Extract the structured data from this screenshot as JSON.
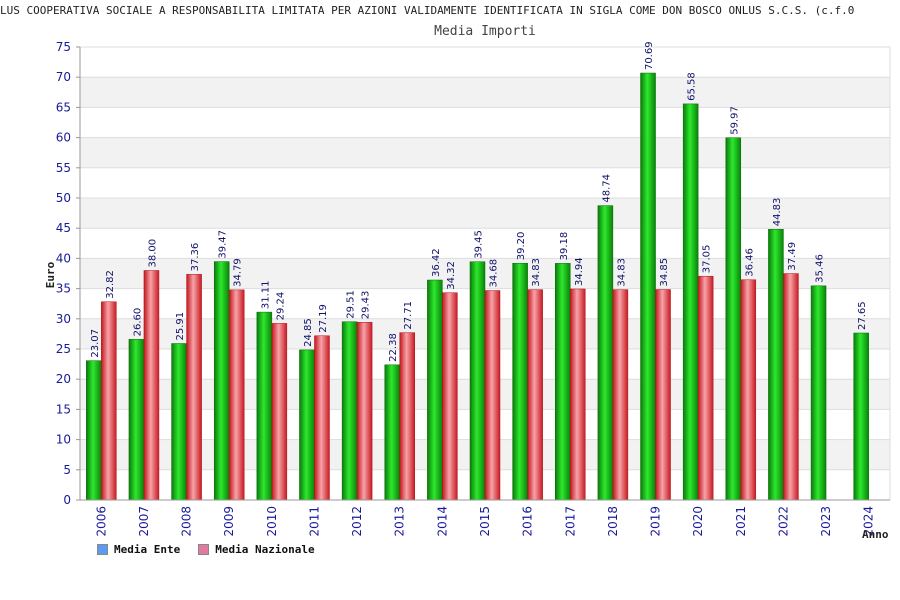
{
  "header": {
    "title": "LUS COOPERATIVA SOCIALE A RESPONSABILITA LIMITATA PER AZIONI VALIDAMENTE IDENTIFICATA IN SIGLA COME DON BOSCO ONLUS S.C.S. (c.f.0",
    "subtitle": "Media Importi"
  },
  "colors": {
    "ente": "#18b418",
    "nazionale": "#e0444c",
    "legend_ente": "#5b9bf0",
    "legend_nazionale": "#e07aa0",
    "band": "#f2f2f2",
    "tick_text": "#1a1a9c"
  },
  "chart_data": {
    "type": "bar",
    "title": "Media Importi",
    "xlabel": "Anno",
    "ylabel": "Euro",
    "ylim": [
      0,
      75
    ],
    "ytick_step": 5,
    "grid": true,
    "legend_position": "bottom-left",
    "categories": [
      "2006",
      "2007",
      "2008",
      "2009",
      "2010",
      "2011",
      "2012",
      "2013",
      "2014",
      "2015",
      "2016",
      "2017",
      "2018",
      "2019",
      "2020",
      "2021",
      "2022",
      "2023",
      "2024"
    ],
    "series": [
      {
        "name": "Media Ente",
        "values": [
          23.07,
          26.6,
          25.91,
          39.47,
          31.11,
          24.85,
          29.51,
          22.38,
          36.42,
          39.45,
          39.2,
          39.18,
          48.74,
          70.69,
          65.58,
          59.97,
          44.83,
          35.46,
          27.65
        ],
        "labels": [
          "23.07",
          "26.60",
          "25.91",
          "39.47",
          "31.11",
          "24.85",
          "29.51",
          "22.38",
          "36.42",
          "39.45",
          "39.20",
          "39.18",
          "48.74",
          "70.69",
          "65.58",
          "59.97",
          "44.83",
          "35.46",
          "27.65"
        ]
      },
      {
        "name": "Media Nazionale",
        "values": [
          32.82,
          38.0,
          37.36,
          34.79,
          29.24,
          27.19,
          29.43,
          27.71,
          34.32,
          34.68,
          34.83,
          34.94,
          34.83,
          34.85,
          37.05,
          36.46,
          37.49,
          null,
          null
        ],
        "labels": [
          "32.82",
          "38.00",
          "37.36",
          "34.79",
          "29.24",
          "27.19",
          "29.43",
          "27.71",
          "34.32",
          "34.68",
          "34.83",
          "34.94",
          "34.83",
          "34.85",
          "37.05",
          "36.46",
          "37.49",
          null,
          null
        ]
      }
    ]
  }
}
